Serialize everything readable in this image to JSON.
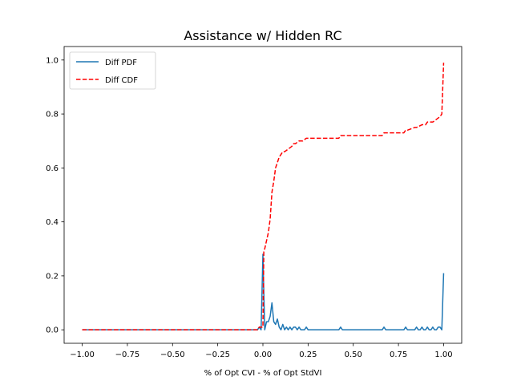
{
  "chart_data": {
    "type": "line",
    "title": "Assistance w/ Hidden RC",
    "xlabel": "% of Opt CVI - % of Opt StdVI",
    "ylabel": "",
    "xlim": [
      -1.1,
      1.1
    ],
    "ylim": [
      -0.05,
      1.05
    ],
    "x_ticks": [
      -1.0,
      -0.75,
      -0.5,
      -0.25,
      0.0,
      0.25,
      0.5,
      0.75,
      1.0
    ],
    "x_tick_labels": [
      "−1.00",
      "−0.75",
      "−0.50",
      "−0.25",
      "0.00",
      "0.25",
      "0.50",
      "0.75",
      "1.00"
    ],
    "y_ticks": [
      0.0,
      0.2,
      0.4,
      0.6,
      0.8,
      1.0
    ],
    "y_tick_labels": [
      "0.0",
      "0.2",
      "0.4",
      "0.6",
      "0.8",
      "1.0"
    ],
    "grid": false,
    "legend_placement": "top-left",
    "series": [
      {
        "name": "Diff PDF",
        "color": "#1f77b4",
        "style": "solid",
        "x": [
          -1.0,
          -0.99,
          -0.03,
          -0.02,
          -0.01,
          0.0,
          0.01,
          0.02,
          0.03,
          0.04,
          0.05,
          0.06,
          0.07,
          0.08,
          0.09,
          0.1,
          0.11,
          0.12,
          0.13,
          0.14,
          0.15,
          0.16,
          0.17,
          0.18,
          0.19,
          0.2,
          0.21,
          0.22,
          0.23,
          0.24,
          0.25,
          0.42,
          0.43,
          0.44,
          0.66,
          0.67,
          0.68,
          0.78,
          0.79,
          0.8,
          0.84,
          0.85,
          0.86,
          0.87,
          0.88,
          0.89,
          0.9,
          0.91,
          0.92,
          0.93,
          0.94,
          0.95,
          0.96,
          0.97,
          0.98,
          0.99,
          1.0
        ],
        "values": [
          0.0,
          0.0,
          0.0,
          0.01,
          0.0,
          0.28,
          0.0,
          0.03,
          0.03,
          0.05,
          0.1,
          0.03,
          0.02,
          0.04,
          0.01,
          0.0,
          0.02,
          0.0,
          0.01,
          0.0,
          0.01,
          0.0,
          0.01,
          0.01,
          0.0,
          0.01,
          0.0,
          0.0,
          0.0,
          0.01,
          0.0,
          0.0,
          0.01,
          0.0,
          0.0,
          0.01,
          0.0,
          0.0,
          0.01,
          0.0,
          0.0,
          0.01,
          0.0,
          0.0,
          0.01,
          0.0,
          0.0,
          0.01,
          0.0,
          0.0,
          0.01,
          0.0,
          0.0,
          0.01,
          0.01,
          0.0,
          0.21
        ]
      },
      {
        "name": "Diff CDF",
        "color": "#ff0000",
        "style": "dashed",
        "x": [
          -1.0,
          -0.03,
          -0.02,
          -0.01,
          0.0,
          0.005,
          0.01,
          0.02,
          0.03,
          0.04,
          0.05,
          0.06,
          0.07,
          0.08,
          0.09,
          0.1,
          0.11,
          0.12,
          0.14,
          0.16,
          0.17,
          0.18,
          0.2,
          0.22,
          0.24,
          0.26,
          0.3,
          0.42,
          0.43,
          0.66,
          0.67,
          0.78,
          0.79,
          0.8,
          0.84,
          0.85,
          0.88,
          0.9,
          0.91,
          0.94,
          0.96,
          0.98,
          0.99,
          1.0
        ],
        "values": [
          0.0,
          0.0,
          0.01,
          0.01,
          0.01,
          0.29,
          0.3,
          0.33,
          0.36,
          0.41,
          0.51,
          0.55,
          0.6,
          0.62,
          0.64,
          0.65,
          0.66,
          0.66,
          0.67,
          0.68,
          0.69,
          0.69,
          0.7,
          0.7,
          0.71,
          0.71,
          0.71,
          0.71,
          0.72,
          0.72,
          0.73,
          0.73,
          0.74,
          0.74,
          0.75,
          0.75,
          0.76,
          0.76,
          0.77,
          0.77,
          0.78,
          0.79,
          0.8,
          0.99
        ]
      }
    ]
  }
}
